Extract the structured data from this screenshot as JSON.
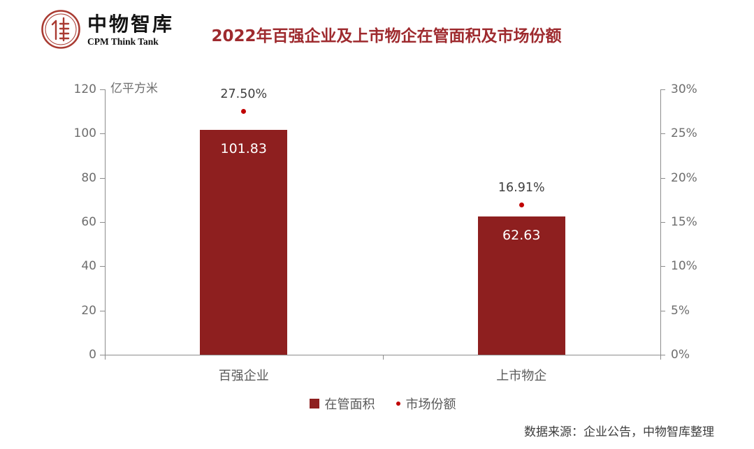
{
  "header": {
    "logo": {
      "name_cn": "中物智库",
      "name_en": "CPM Think Tank"
    },
    "title": "2022年百强企业及上市物企在管面积及市场份额"
  },
  "chart_data": {
    "type": "bar",
    "title": "2022年百强企业及上市物企在管面积及市场份额",
    "categories": [
      "百强企业",
      "上市物企"
    ],
    "series": [
      {
        "name": "在管面积",
        "render": "bar",
        "axis": "left",
        "values": [
          101.83,
          62.63
        ],
        "labels": [
          "101.83",
          "62.63"
        ],
        "color": "#8E1F1F"
      },
      {
        "name": "市场份额",
        "render": "point",
        "axis": "right",
        "values": [
          27.5,
          16.91
        ],
        "labels": [
          "27.50%",
          "16.91%"
        ],
        "color": "#C00000"
      }
    ],
    "left_axis": {
      "unit": "亿平方米",
      "min": 0,
      "max": 120,
      "tick_values": [
        120,
        100,
        80,
        60,
        40,
        20,
        0
      ],
      "ticks": [
        "120",
        "100",
        "80",
        "60",
        "40",
        "20",
        "0"
      ]
    },
    "right_axis": {
      "min": 0,
      "max": 30,
      "tick_values": [
        30,
        25,
        20,
        15,
        10,
        5,
        0
      ],
      "ticks": [
        "30%",
        "25%",
        "20%",
        "15%",
        "10%",
        "5%",
        "0%"
      ]
    },
    "grid": false,
    "legend_position": "bottom"
  },
  "legend": {
    "items": [
      {
        "label": "在管面积",
        "marker": "square",
        "color": "#8E1F1F"
      },
      {
        "label": "市场份额",
        "marker": "dot",
        "color": "#C00000"
      }
    ]
  },
  "footer": {
    "source": "数据来源：企业公告，中物智库整理"
  },
  "colors": {
    "bar": "#8E1F1F",
    "dot": "#C00000",
    "title": "#9E2A2E",
    "seal": "#A93B32",
    "axis_line": "#8C8C8C",
    "axis_text": "#6E6E6E",
    "category_text": "#595959",
    "point_label_text": "#404040"
  }
}
